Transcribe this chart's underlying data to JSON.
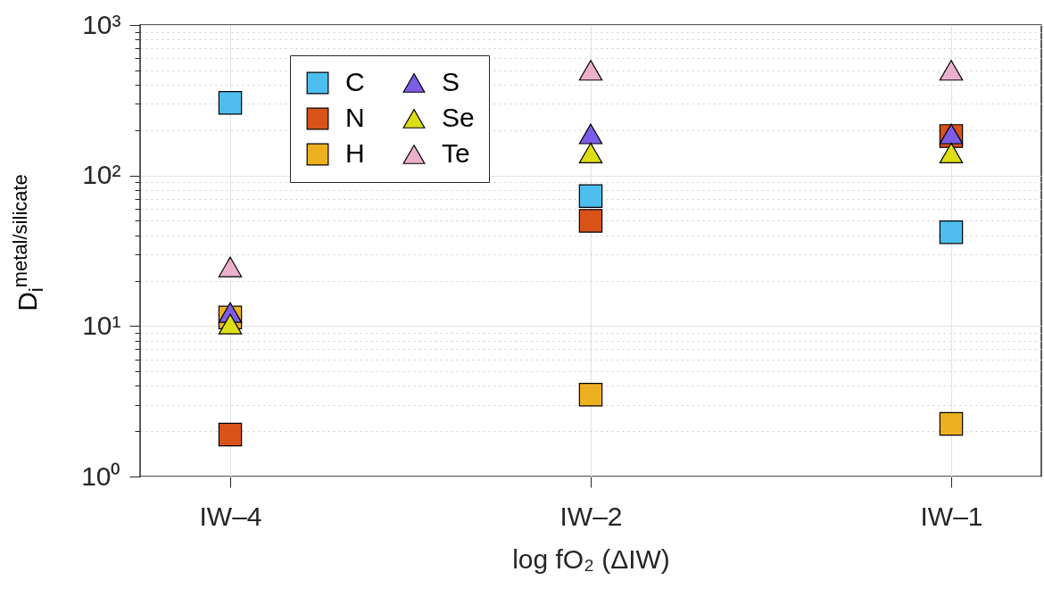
{
  "chart_data": {
    "type": "scatter",
    "xlabel": "log fO₂ (ΔIW)",
    "ylabel": "D$_{i}$$^{metal/silicate}$",
    "categories": [
      "IW–4",
      "IW–2",
      "IW–1"
    ],
    "log": "y",
    "ylim": [
      1,
      1000
    ],
    "yticks": [
      {
        "value": 1,
        "label": "10⁰"
      },
      {
        "value": 2,
        "label": null
      },
      {
        "value": 3,
        "label": null
      },
      {
        "value": 4,
        "label": null
      },
      {
        "value": 5,
        "label": null
      },
      {
        "value": 6,
        "label": null
      },
      {
        "value": 7,
        "label": null
      },
      {
        "value": 8,
        "label": null
      },
      {
        "value": 9,
        "label": null
      },
      {
        "value": 10,
        "label": "10¹"
      },
      {
        "value": 20,
        "label": null
      },
      {
        "value": 30,
        "label": null
      },
      {
        "value": 40,
        "label": null
      },
      {
        "value": 50,
        "label": null
      },
      {
        "value": 60,
        "label": null
      },
      {
        "value": 70,
        "label": null
      },
      {
        "value": 80,
        "label": null
      },
      {
        "value": 90,
        "label": null
      },
      {
        "value": 100,
        "label": "10²"
      },
      {
        "value": 200,
        "label": null
      },
      {
        "value": 300,
        "label": null
      },
      {
        "value": 400,
        "label": null
      },
      {
        "value": 500,
        "label": null
      },
      {
        "value": 600,
        "label": null
      },
      {
        "value": 700,
        "label": null
      },
      {
        "value": 800,
        "label": null
      },
      {
        "value": 900,
        "label": null
      },
      {
        "value": 1000,
        "label": "10³"
      }
    ],
    "grid": true,
    "legend": "top left",
    "series": [
      {
        "name": "C",
        "color": "#4dbeee",
        "marker": "square",
        "values": [
          304,
          73,
          42
        ]
      },
      {
        "name": "N",
        "color": "#d95319",
        "marker": "square",
        "values": [
          1.9,
          50,
          183
        ]
      },
      {
        "name": "H",
        "color": "#edb120",
        "marker": "square",
        "values": [
          11.4,
          3.5,
          2.24
        ]
      },
      {
        "name": "S",
        "color": "#7e5ce8",
        "marker": "triangle",
        "values": [
          12.3,
          189,
          189
        ]
      },
      {
        "name": "Se",
        "color": "#dddd14",
        "marker": "triangle",
        "values": [
          10.3,
          141,
          141
        ]
      },
      {
        "name": "Te",
        "color": "#ecb0cc",
        "marker": "triangle",
        "values": [
          24.7,
          500,
          500
        ]
      }
    ]
  }
}
